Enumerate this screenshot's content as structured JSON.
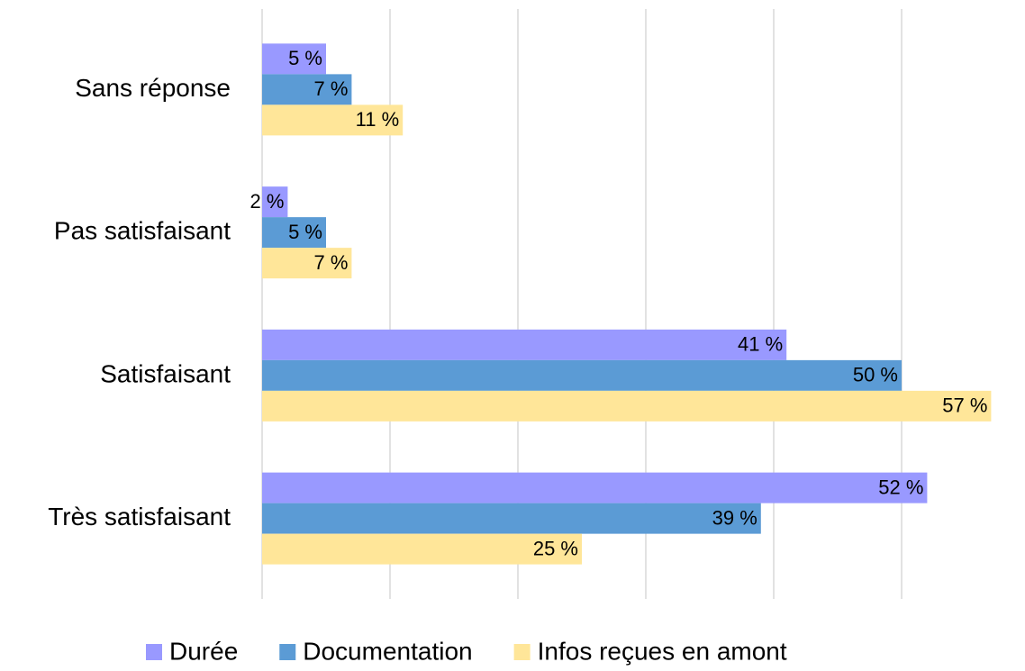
{
  "chart_data": {
    "type": "barh",
    "categories": [
      "Sans réponse",
      "Pas satisfaisant",
      "Satisfaisant",
      "Très satisfaisant"
    ],
    "series": [
      {
        "name": "Durée",
        "color": "#9999ff",
        "values": [
          5,
          2,
          41,
          52
        ],
        "value_labels": [
          "5 %",
          "2 %",
          "41 %",
          "52 %"
        ]
      },
      {
        "name": "Documentation",
        "color": "#5b9bd5",
        "values": [
          7,
          5,
          50,
          39
        ],
        "value_labels": [
          "7 %",
          "5 %",
          "50 %",
          "39 %"
        ]
      },
      {
        "name": "Infos reçues en amont",
        "color": "#ffe699",
        "values": [
          11,
          7,
          57,
          25
        ],
        "value_labels": [
          "11 %",
          "7 %",
          "57 %",
          "25 %"
        ]
      }
    ],
    "xlim": [
      0,
      60
    ],
    "xticks": [
      0,
      10,
      20,
      30,
      40,
      50
    ],
    "grid": true,
    "legend": "bottom"
  }
}
